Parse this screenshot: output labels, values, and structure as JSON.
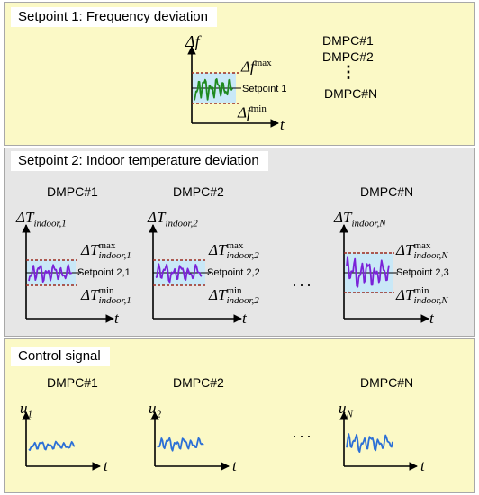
{
  "panel1": {
    "title": "Setpoint 1: Frequency deviation",
    "y_symbol": "Δf",
    "x_symbol": "t",
    "max_label_base": "Δf",
    "max_label_sup": "max",
    "min_label_base": "Δf",
    "min_label_sup": "min",
    "setpoint_label": "Setpoint 1",
    "agents": [
      "DMPC#1",
      "DMPC#2",
      "DMPC#N"
    ],
    "vertical_ellipsis": "⋮"
  },
  "panel2": {
    "title": "Setpoint 2: Indoor temperature deviation",
    "ellipsis": "···",
    "x_symbol": "t",
    "charts": [
      {
        "header": "DMPC#1",
        "y_base": "ΔT",
        "y_sub": "indoor,1",
        "max_sub": "indoor,1",
        "min_sub": "indoor,1",
        "setpoint": "Setpoint 2,1"
      },
      {
        "header": "DMPC#2",
        "y_base": "ΔT",
        "y_sub": "indoor,2",
        "max_sub": "indoor,2",
        "min_sub": "indoor,2",
        "setpoint": "Setpoint 2,2"
      },
      {
        "header": "DMPC#N",
        "y_base": "ΔT",
        "y_sub": "indoor,N",
        "max_sub": "indoor,N",
        "min_sub": "indoor,N",
        "setpoint": "Setpoint 2,3"
      }
    ],
    "sup_max": "max",
    "sup_min": "min"
  },
  "panel3": {
    "title": "Control signal",
    "ellipsis": "···",
    "x_symbol": "t",
    "charts": [
      {
        "header": "DMPC#1",
        "y_base": "u",
        "y_sub": "1"
      },
      {
        "header": "DMPC#2",
        "y_base": "u",
        "y_sub": "2"
      },
      {
        "header": "DMPC#N",
        "y_base": "u",
        "y_sub": "N"
      }
    ]
  },
  "colors": {
    "frequency_signal": "#1f8a1f",
    "temperature_signal": "#7a22d8",
    "control_signal": "#2b6fd6",
    "band_fill": "#c9e8f7",
    "bound_line": "#9c2a1f"
  }
}
